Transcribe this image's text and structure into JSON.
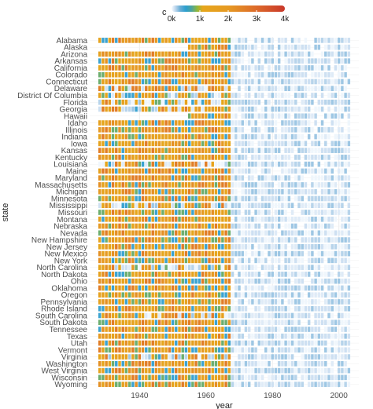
{
  "chart_data": {
    "type": "heatmap",
    "title": "",
    "xlabel": "year",
    "ylabel": "state",
    "xlim": [
      1925,
      2006
    ],
    "x_ticks": [
      "1940",
      "1960",
      "1980",
      "2000"
    ],
    "x_tick_values": [
      1940,
      1960,
      1980,
      2000
    ],
    "legend": {
      "title": "c",
      "placement": "top",
      "range": [
        0,
        4000
      ],
      "tick_labels": [
        "0k",
        "1k",
        "2k",
        "3k",
        "4k"
      ],
      "tick_values": [
        0,
        1000,
        2000,
        3000,
        4000
      ]
    },
    "color_scale": {
      "stops": [
        {
          "value": 0,
          "color": "#f7fbff"
        },
        {
          "value": 120,
          "color": "#c6dbef"
        },
        {
          "value": 300,
          "color": "#6baed6"
        },
        {
          "value": 500,
          "color": "#2b9fcf"
        },
        {
          "value": 700,
          "color": "#4aa3a0"
        },
        {
          "value": 900,
          "color": "#8db83d"
        },
        {
          "value": 1100,
          "color": "#e6a61c"
        },
        {
          "value": 2000,
          "color": "#e69a23"
        },
        {
          "value": 3000,
          "color": "#dd6a2a"
        },
        {
          "value": 4000,
          "color": "#c9382a"
        }
      ]
    },
    "grid": true,
    "states": [
      "Alabama",
      "Alaska",
      "Arizona",
      "Arkansas",
      "California",
      "Colorado",
      "Connecticut",
      "Delaware",
      "District Of Columbia",
      "Florida",
      "Georgia",
      "Hawaii",
      "Idaho",
      "Illinois",
      "Indiana",
      "Iowa",
      "Kansas",
      "Kentucky",
      "Louisiana",
      "Maine",
      "Maryland",
      "Massachusetts",
      "Michigan",
      "Minnesota",
      "Mississippi",
      "Missouri",
      "Montana",
      "Nebraska",
      "Nevada",
      "New Hampshire",
      "New Jersey",
      "New Mexico",
      "New York",
      "North Carolina",
      "North Dakota",
      "Ohio",
      "Oklahoma",
      "Oregon",
      "Pennsylvania",
      "Rhode Island",
      "South Carolina",
      "South Dakota",
      "Tennessee",
      "Texas",
      "Utah",
      "Vermont",
      "Virginia",
      "Washington",
      "West Virginia",
      "Wisconsin",
      "Wyoming"
    ],
    "year_start": 1928,
    "year_end": 2003,
    "data_start_year": {
      "Alaska": 1955,
      "Hawaii": 1955,
      "District Of Columbia": 1928
    },
    "high_period_end": 1967,
    "high_period_values": [
      1100,
      2000,
      2600,
      1500,
      800,
      450,
      1300,
      2200
    ],
    "sparse_high_states": [
      "District Of Columbia",
      "Florida",
      "Georgia",
      "Louisiana",
      "Mississippi",
      "South Carolina",
      "Virginia",
      "North Carolina",
      "Delaware"
    ],
    "low_period_values": [
      20,
      60,
      100,
      150,
      200
    ]
  }
}
